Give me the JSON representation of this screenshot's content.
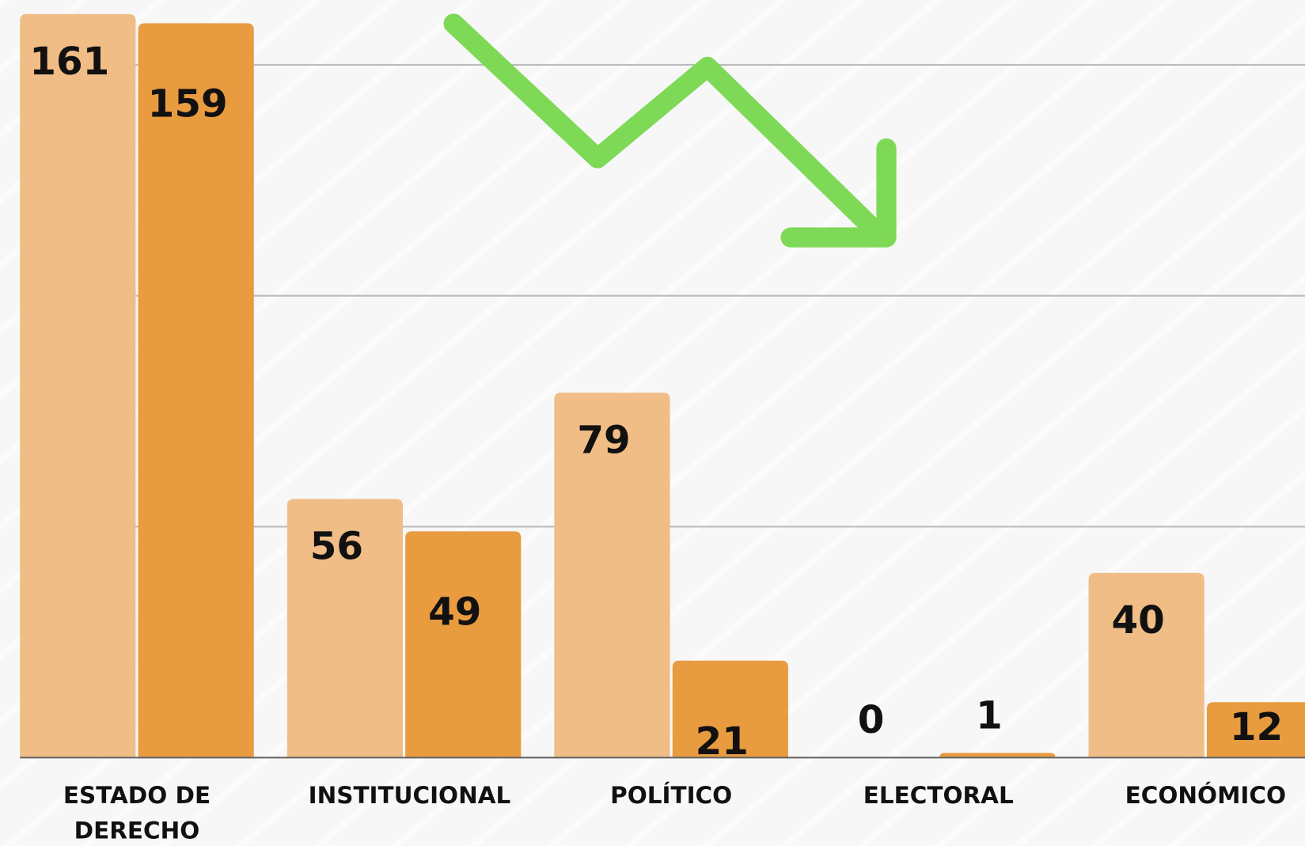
{
  "chart_data": {
    "type": "bar",
    "categories": [
      "ESTADO DE DERECHO",
      "INSTITUCIONAL",
      "POLÍTICO",
      "ELECTORAL",
      "ECONÓMICO"
    ],
    "series": [
      {
        "color": "#f0bd86",
        "values": [
          161,
          56,
          79,
          0,
          40
        ]
      },
      {
        "color": "#e99b40",
        "values": [
          159,
          49,
          21,
          1,
          12
        ]
      }
    ],
    "ylim": [
      0,
      164
    ],
    "gridlines": [
      50,
      100,
      150
    ],
    "grid": true
  }
}
